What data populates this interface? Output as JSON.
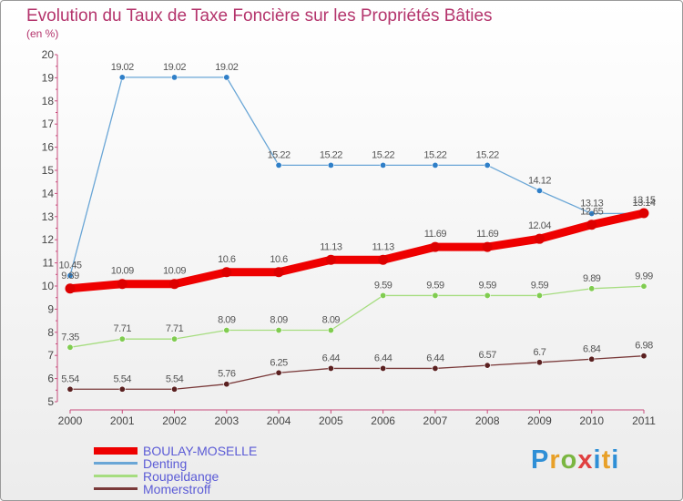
{
  "title": "Evolution du Taux de Taxe Foncière sur les Propriétés Bâties",
  "subtitle": "(en %)",
  "logo_text": "Proxiti",
  "chart_data": {
    "type": "line",
    "x": [
      "2000",
      "2001",
      "2002",
      "2003",
      "2004",
      "2005",
      "2006",
      "2007",
      "2008",
      "2009",
      "2010",
      "2011"
    ],
    "ylim": [
      5,
      20
    ],
    "yticks": [
      "5",
      "6",
      "7",
      "8",
      "9",
      "10",
      "11",
      "12",
      "13",
      "14",
      "15",
      "16",
      "17",
      "18",
      "19",
      "20"
    ],
    "grid": false,
    "legend": "bottom-left",
    "series": [
      {
        "name": "BOULAY-MOSELLE",
        "color": "#ee0000",
        "values": [
          9.89,
          10.09,
          10.09,
          10.6,
          10.6,
          11.13,
          11.13,
          11.69,
          11.69,
          12.04,
          12.65,
          13.15
        ],
        "labels": [
          "9.89",
          "10.09",
          "10.09",
          "10.6",
          "10.6",
          "11.13",
          "11.13",
          "11.69",
          "11.69",
          "12.04",
          "12.65",
          "13.15"
        ]
      },
      {
        "name": "Denting",
        "color": "#6aa6d6",
        "values": [
          10.45,
          19.02,
          19.02,
          19.02,
          15.22,
          15.22,
          15.22,
          15.22,
          15.22,
          14.12,
          13.13,
          13.14
        ],
        "labels": [
          "10.45",
          "19.02",
          "19.02",
          "19.02",
          "15.22",
          "15.22",
          "15.22",
          "15.22",
          "15.22",
          "14.12",
          "13.13",
          "13.14"
        ]
      },
      {
        "name": "Roupeldange",
        "color": "#a6dd80",
        "values": [
          7.35,
          7.71,
          7.71,
          8.09,
          8.09,
          8.09,
          9.59,
          9.59,
          9.59,
          9.59,
          9.89,
          9.99
        ],
        "labels": [
          "7.35",
          "7.71",
          "7.71",
          "8.09",
          "8.09",
          "8.09",
          "9.59",
          "9.59",
          "9.59",
          "9.59",
          "9.89",
          "9.99"
        ]
      },
      {
        "name": "Momerstroff",
        "color": "#7a3a3a",
        "values": [
          5.54,
          5.54,
          5.54,
          5.76,
          6.25,
          6.44,
          6.44,
          6.44,
          6.57,
          6.7,
          6.84,
          6.98
        ],
        "labels": [
          "5.54",
          "5.54",
          "5.54",
          "5.76",
          "6.25",
          "6.44",
          "6.44",
          "6.44",
          "6.57",
          "6.7",
          "6.84",
          "6.98"
        ]
      }
    ]
  }
}
